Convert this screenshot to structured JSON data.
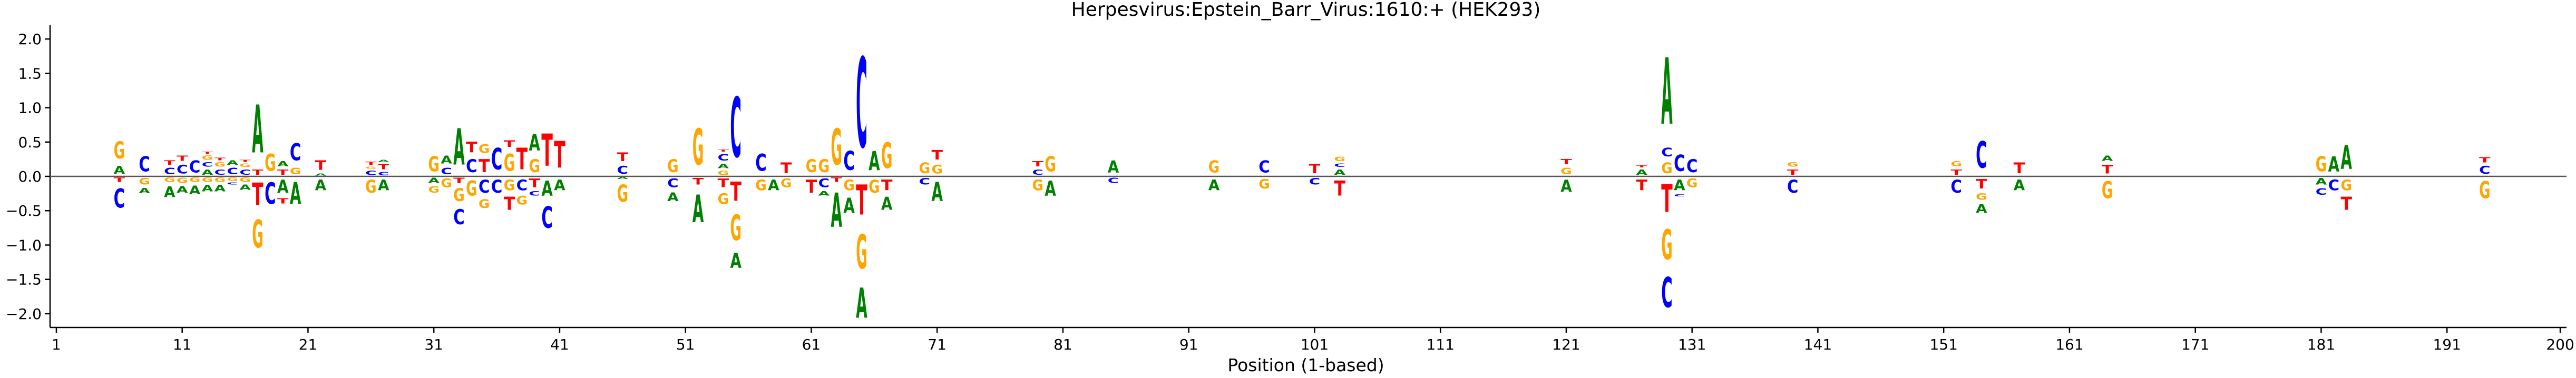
{
  "chart_data": {
    "type": "sequence-logo",
    "title": "Herpesvirus:Epstein_Barr_Virus:1610:+  (HEK293)",
    "xlabel": "Position (1-based)",
    "ylabel": "",
    "xlim": [
      1,
      200
    ],
    "ylim": [
      -2.2,
      2.2
    ],
    "x_ticks": [
      1,
      11,
      21,
      31,
      41,
      51,
      61,
      71,
      81,
      91,
      101,
      111,
      121,
      131,
      141,
      151,
      161,
      171,
      181,
      191,
      200
    ],
    "y_ticks": [
      -2.0,
      -1.5,
      -1.0,
      -0.5,
      0.0,
      0.5,
      1.0,
      1.5,
      2.0
    ],
    "y_tick_labels": [
      "−2.0",
      "−1.5",
      "−1.0",
      "−0.5",
      "0.0",
      "0.5",
      "1.0",
      "1.5",
      "2.0"
    ],
    "zero_line": true,
    "grid": false,
    "letter_colors": {
      "A": "#008000",
      "C": "#0000ff",
      "G": "#ffa500",
      "T": "#ff0000"
    },
    "positions": [
      {
        "x": 6,
        "up": [
          [
            "A",
            0.18
          ],
          [
            "G",
            0.4
          ]
        ],
        "down": [
          [
            "T",
            0.1
          ],
          [
            "C",
            0.45
          ]
        ]
      },
      {
        "x": 8,
        "up": [
          [
            "C",
            0.35
          ]
        ],
        "down": [
          [
            "G",
            0.15
          ],
          [
            "A",
            0.12
          ]
        ]
      },
      {
        "x": 10,
        "up": [
          [
            "C",
            0.15
          ],
          [
            "T",
            0.1
          ]
        ],
        "down": [
          [
            "G",
            0.1
          ],
          [
            "A",
            0.25
          ]
        ]
      },
      {
        "x": 11,
        "up": [
          [
            "C",
            0.2
          ],
          [
            "T",
            0.12
          ]
        ],
        "down": [
          [
            "G",
            0.12
          ],
          [
            "A",
            0.15
          ]
        ]
      },
      {
        "x": 12,
        "up": [
          [
            "C",
            0.28
          ]
        ],
        "down": [
          [
            "G",
            0.1
          ],
          [
            "A",
            0.2
          ]
        ]
      },
      {
        "x": 13,
        "up": [
          [
            "A",
            0.12
          ],
          [
            "C",
            0.1
          ],
          [
            "G",
            0.1
          ],
          [
            "T",
            0.05
          ]
        ],
        "down": [
          [
            "G",
            0.1
          ],
          [
            "A",
            0.15
          ]
        ]
      },
      {
        "x": 14,
        "up": [
          [
            "C",
            0.12
          ],
          [
            "G",
            0.1
          ],
          [
            "T",
            0.06
          ]
        ],
        "down": [
          [
            "G",
            0.1
          ],
          [
            "A",
            0.15
          ]
        ]
      },
      {
        "x": 15,
        "up": [
          [
            "C",
            0.15
          ],
          [
            "A",
            0.1
          ]
        ],
        "down": [
          [
            "G",
            0.08
          ],
          [
            "C",
            0.05
          ]
        ]
      },
      {
        "x": 16,
        "up": [
          [
            "C",
            0.12
          ],
          [
            "G",
            0.08
          ],
          [
            "T",
            0.05
          ]
        ],
        "down": [
          [
            "G",
            0.1
          ],
          [
            "A",
            0.12
          ]
        ]
      },
      {
        "x": 17,
        "up": [
          [
            "T",
            0.12
          ],
          [
            "A",
            1.12
          ]
        ],
        "down": [
          [
            "T",
            0.52
          ],
          [
            "G",
            0.65
          ]
        ]
      },
      {
        "x": 18,
        "up": [
          [
            "G",
            0.4
          ]
        ],
        "down": [
          [
            "C",
            0.5
          ]
        ]
      },
      {
        "x": 19,
        "up": [
          [
            "T",
            0.12
          ],
          [
            "A",
            0.12
          ]
        ],
        "down": [
          [
            "A",
            0.3
          ],
          [
            "T",
            0.12
          ]
        ]
      },
      {
        "x": 20,
        "up": [
          [
            "G",
            0.15
          ],
          [
            "C",
            0.4
          ]
        ],
        "down": [
          [
            "A",
            0.5
          ]
        ]
      },
      {
        "x": 22,
        "up": [
          [
            "A",
            0.05
          ],
          [
            "T",
            0.22
          ]
        ],
        "down": [
          [
            "A",
            0.25
          ]
        ]
      },
      {
        "x": 26,
        "up": [
          [
            "C",
            0.1
          ],
          [
            "G",
            0.05
          ],
          [
            "T",
            0.08
          ]
        ],
        "down": [
          [
            "G",
            0.3
          ]
        ]
      },
      {
        "x": 27,
        "up": [
          [
            "C",
            0.08
          ],
          [
            "T",
            0.12
          ],
          [
            "A",
            0.05
          ]
        ],
        "down": [
          [
            "A",
            0.25
          ]
        ]
      },
      {
        "x": 31,
        "up": [
          [
            "G",
            0.35
          ]
        ],
        "down": [
          [
            "A",
            0.12
          ],
          [
            "G",
            0.15
          ]
        ]
      },
      {
        "x": 32,
        "up": [
          [
            "C",
            0.15
          ],
          [
            "A",
            0.18
          ]
        ],
        "down": [
          [
            "G",
            0.2
          ]
        ]
      },
      {
        "x": 33,
        "up": [
          [
            "A",
            0.85
          ]
        ],
        "down": [
          [
            "T",
            0.12
          ],
          [
            "G",
            0.3
          ],
          [
            "C",
            0.35
          ]
        ]
      },
      {
        "x": 34,
        "up": [
          [
            "C",
            0.3
          ],
          [
            "T",
            0.25
          ]
        ],
        "down": [
          [
            "G",
            0.35
          ]
        ]
      },
      {
        "x": 35,
        "up": [
          [
            "T",
            0.3
          ],
          [
            "G",
            0.2
          ]
        ],
        "down": [
          [
            "C",
            0.3
          ],
          [
            "G",
            0.2
          ]
        ]
      },
      {
        "x": 36,
        "up": [
          [
            "C",
            0.5
          ]
        ],
        "down": [
          [
            "C",
            0.3
          ]
        ]
      },
      {
        "x": 37,
        "up": [
          [
            "G",
            0.4
          ],
          [
            "T",
            0.15
          ]
        ],
        "down": [
          [
            "G",
            0.25
          ],
          [
            "T",
            0.3
          ]
        ]
      },
      {
        "x": 38,
        "up": [
          [
            "T",
            0.5
          ]
        ],
        "down": [
          [
            "C",
            0.25
          ],
          [
            "G",
            0.2
          ]
        ]
      },
      {
        "x": 39,
        "up": [
          [
            "G",
            0.3
          ],
          [
            "A",
            0.38
          ]
        ],
        "down": [
          [
            "T",
            0.2
          ],
          [
            "C",
            0.1
          ]
        ]
      },
      {
        "x": 40,
        "up": [
          [
            "T",
            0.75
          ]
        ],
        "down": [
          [
            "A",
            0.35
          ],
          [
            "C",
            0.5
          ]
        ]
      },
      {
        "x": 41,
        "up": [
          [
            "T",
            0.62
          ]
        ],
        "down": [
          [
            "A",
            0.25
          ]
        ]
      },
      {
        "x": 46,
        "up": [
          [
            "C",
            0.18
          ],
          [
            "T",
            0.2
          ]
        ],
        "down": [
          [
            "A",
            0.05
          ],
          [
            "G",
            0.4
          ]
        ]
      },
      {
        "x": 50,
        "up": [
          [
            "G",
            0.3
          ]
        ],
        "down": [
          [
            "C",
            0.2
          ],
          [
            "A",
            0.2
          ]
        ]
      },
      {
        "x": 52,
        "up": [
          [
            "G",
            0.85
          ]
        ],
        "down": [
          [
            "T",
            0.15
          ],
          [
            "A",
            0.65
          ]
        ]
      },
      {
        "x": 54,
        "up": [
          [
            "G",
            0.1
          ],
          [
            "A",
            0.1
          ],
          [
            "C",
            0.15
          ],
          [
            "T",
            0.05
          ]
        ],
        "down": [
          [
            "T",
            0.2
          ],
          [
            "G",
            0.25
          ]
        ]
      },
      {
        "x": 55,
        "up": [
          [
            "C",
            1.4
          ]
        ],
        "down": [
          [
            "T",
            0.45
          ],
          [
            "G",
            0.6
          ],
          [
            "A",
            0.35
          ]
        ]
      },
      {
        "x": 57,
        "up": [
          [
            "C",
            0.4
          ]
        ],
        "down": [
          [
            "G",
            0.25
          ]
        ]
      },
      {
        "x": 58,
        "up": [],
        "down": [
          [
            "A",
            0.25
          ]
        ]
      },
      {
        "x": 59,
        "up": [
          [
            "T",
            0.25
          ]
        ],
        "down": [
          [
            "G",
            0.2
          ]
        ]
      },
      {
        "x": 61,
        "up": [
          [
            "G",
            0.3
          ]
        ],
        "down": [
          [
            "T",
            0.3
          ]
        ]
      },
      {
        "x": 62,
        "up": [
          [
            "G",
            0.3
          ]
        ],
        "down": [
          [
            "C",
            0.2
          ],
          [
            "A",
            0.1
          ]
        ]
      },
      {
        "x": 63,
        "up": [
          [
            "G",
            0.85
          ]
        ],
        "down": [
          [
            "T",
            0.1
          ],
          [
            "A",
            0.8
          ]
        ]
      },
      {
        "x": 64,
        "up": [
          [
            "C",
            0.45
          ]
        ],
        "down": [
          [
            "G",
            0.25
          ],
          [
            "A",
            0.35
          ]
        ]
      },
      {
        "x": 65,
        "up": [
          [
            "C",
            2.1
          ]
        ],
        "down": [
          [
            "T",
            0.7
          ],
          [
            "G",
            0.8
          ],
          [
            "A",
            0.7
          ]
        ]
      },
      {
        "x": 66,
        "up": [
          [
            "A",
            0.45
          ]
        ],
        "down": [
          [
            "G",
            0.3
          ]
        ]
      },
      {
        "x": 67,
        "up": [
          [
            "G",
            0.6
          ]
        ],
        "down": [
          [
            "T",
            0.25
          ],
          [
            "A",
            0.3
          ]
        ]
      },
      {
        "x": 70,
        "up": [
          [
            "G",
            0.25
          ]
        ],
        "down": [
          [
            "C",
            0.15
          ]
        ]
      },
      {
        "x": 71,
        "up": [
          [
            "G",
            0.2
          ],
          [
            "T",
            0.22
          ]
        ],
        "down": [
          [
            "A",
            0.45
          ]
        ]
      },
      {
        "x": 79,
        "up": [
          [
            "C",
            0.12
          ],
          [
            "T",
            0.12
          ]
        ],
        "down": [
          [
            "G",
            0.25
          ]
        ]
      },
      {
        "x": 80,
        "up": [
          [
            "G",
            0.35
          ]
        ],
        "down": [
          [
            "A",
            0.35
          ]
        ]
      },
      {
        "x": 85,
        "up": [
          [
            "A",
            0.28
          ]
        ],
        "down": [
          [
            "C",
            0.12
          ]
        ]
      },
      {
        "x": 93,
        "up": [
          [
            "G",
            0.28
          ]
        ],
        "down": [
          [
            "A",
            0.25
          ]
        ]
      },
      {
        "x": 97,
        "up": [
          [
            "C",
            0.28
          ]
        ],
        "down": [
          [
            "G",
            0.22
          ]
        ]
      },
      {
        "x": 101,
        "up": [
          [
            "T",
            0.22
          ]
        ],
        "down": [
          [
            "C",
            0.15
          ]
        ]
      },
      {
        "x": 103,
        "up": [
          [
            "A",
            0.12
          ],
          [
            "C",
            0.08
          ],
          [
            "G",
            0.1
          ]
        ],
        "down": [
          [
            "T",
            0.35
          ]
        ]
      },
      {
        "x": 121,
        "up": [
          [
            "G",
            0.15
          ],
          [
            "T",
            0.12
          ]
        ],
        "down": [
          [
            "A",
            0.28
          ]
        ]
      },
      {
        "x": 127,
        "up": [
          [
            "A",
            0.12
          ],
          [
            "T",
            0.05
          ]
        ],
        "down": [
          [
            "T",
            0.25
          ]
        ]
      },
      {
        "x": 129,
        "up": [
          [
            "G",
            0.25
          ],
          [
            "C",
            0.2
          ],
          [
            "A",
            1.55
          ]
        ],
        "down": [
          [
            "T",
            0.65
          ],
          [
            "G",
            0.7
          ],
          [
            "C",
            0.7
          ]
        ]
      },
      {
        "x": 130,
        "up": [
          [
            "C",
            0.38
          ]
        ],
        "down": [
          [
            "A",
            0.25
          ],
          [
            "C",
            0.05
          ]
        ]
      },
      {
        "x": 131,
        "up": [
          [
            "C",
            0.3
          ]
        ],
        "down": [
          [
            "G",
            0.2
          ]
        ]
      },
      {
        "x": 139,
        "up": [
          [
            "T",
            0.12
          ],
          [
            "G",
            0.1
          ]
        ],
        "down": [
          [
            "C",
            0.3
          ]
        ]
      },
      {
        "x": 152,
        "up": [
          [
            "T",
            0.12
          ],
          [
            "G",
            0.12
          ]
        ],
        "down": [
          [
            "C",
            0.3
          ]
        ]
      },
      {
        "x": 154,
        "up": [
          [
            "C",
            0.62
          ]
        ],
        "down": [
          [
            "T",
            0.22
          ],
          [
            "G",
            0.15
          ],
          [
            "A",
            0.2
          ]
        ]
      },
      {
        "x": 157,
        "up": [
          [
            "T",
            0.25
          ]
        ],
        "down": [
          [
            "A",
            0.25
          ]
        ]
      },
      {
        "x": 164,
        "up": [
          [
            "T",
            0.2
          ],
          [
            "A",
            0.12
          ]
        ],
        "down": [
          [
            "G",
            0.4
          ]
        ]
      },
      {
        "x": 181,
        "up": [
          [
            "G",
            0.35
          ]
        ],
        "down": [
          [
            "A",
            0.15
          ],
          [
            "C",
            0.15
          ]
        ]
      },
      {
        "x": 182,
        "up": [
          [
            "A",
            0.35
          ]
        ],
        "down": [
          [
            "C",
            0.25
          ]
        ]
      },
      {
        "x": 183,
        "up": [
          [
            "A",
            0.55
          ]
        ],
        "down": [
          [
            "G",
            0.25
          ],
          [
            "T",
            0.3
          ]
        ]
      },
      {
        "x": 194,
        "up": [
          [
            "C",
            0.18
          ],
          [
            "T",
            0.12
          ]
        ],
        "down": [
          [
            "G",
            0.4
          ]
        ]
      }
    ]
  }
}
